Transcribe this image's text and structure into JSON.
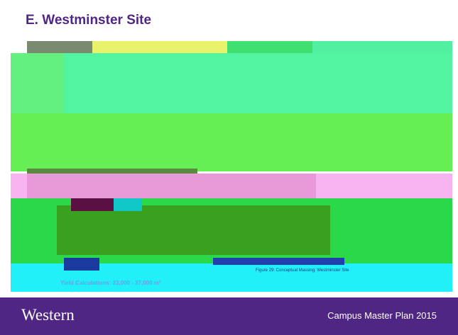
{
  "header": {
    "title": "E. Westminster Site"
  },
  "figure": {
    "caption": "Figure 29: Conceptual Massing: Westminster Site",
    "yield": "Yield Calculations: 33,000 - 37,000 m²"
  },
  "footer": {
    "logo": "Western",
    "text": "Campus Master Plan 2015"
  }
}
